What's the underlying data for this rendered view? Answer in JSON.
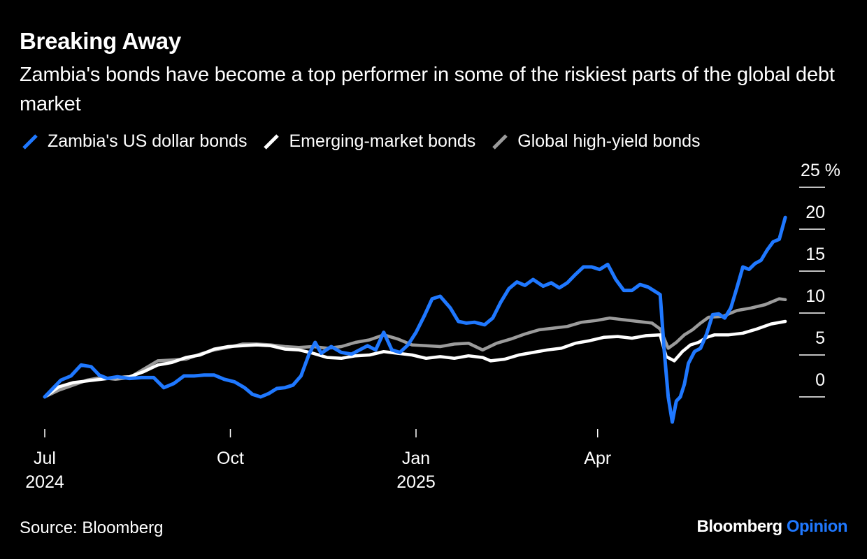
{
  "title": "Breaking Away",
  "subtitle": "Zambia's bonds have become a top performer in some of the riskiest parts of the global debt market",
  "source": "Source: Bloomberg",
  "brand": {
    "name": "Bloomberg",
    "accent": "Opinion"
  },
  "colors": {
    "zambia": "#1f78ff",
    "em": "#ffffff",
    "hy": "#9b9b9b",
    "background": "#000000"
  },
  "chart_data": {
    "type": "line",
    "title": "Breaking Away",
    "subtitle": "Zambia's bonds have become a top performer in some of the riskiest parts of the global debt market",
    "xlabel": "",
    "ylabel": "",
    "y_unit": "%",
    "ylim": [
      -5,
      25
    ],
    "yticks": [
      {
        "value": 25,
        "label": "25 %"
      },
      {
        "value": 20,
        "label": "20"
      },
      {
        "value": 15,
        "label": "15"
      },
      {
        "value": 10,
        "label": "10"
      },
      {
        "value": 5,
        "label": "5"
      },
      {
        "value": 0,
        "label": "0"
      }
    ],
    "xlim": [
      "2024-07-01",
      "2025-06-15"
    ],
    "xticks": [
      {
        "date": "2024-07-01",
        "label": "Jul",
        "sublabel": "2024"
      },
      {
        "date": "2024-10-01",
        "label": "Oct",
        "sublabel": ""
      },
      {
        "date": "2025-01-01",
        "label": "Jan",
        "sublabel": "2025"
      },
      {
        "date": "2025-04-01",
        "label": "Apr",
        "sublabel": ""
      }
    ],
    "grid": false,
    "legend": "top",
    "series": [
      {
        "name": "Zambia's US dollar bonds",
        "color": "#1f78ff",
        "points": [
          [
            "2024-07-01",
            0.0
          ],
          [
            "2024-07-05",
            1.0
          ],
          [
            "2024-07-09",
            2.0
          ],
          [
            "2024-07-14",
            2.5
          ],
          [
            "2024-07-19",
            3.8
          ],
          [
            "2024-07-24",
            3.6
          ],
          [
            "2024-07-28",
            2.6
          ],
          [
            "2024-08-01",
            2.2
          ],
          [
            "2024-08-06",
            2.4
          ],
          [
            "2024-08-12",
            2.2
          ],
          [
            "2024-08-18",
            2.3
          ],
          [
            "2024-08-24",
            2.3
          ],
          [
            "2024-08-29",
            1.1
          ],
          [
            "2024-09-03",
            1.6
          ],
          [
            "2024-09-08",
            2.5
          ],
          [
            "2024-09-13",
            2.5
          ],
          [
            "2024-09-18",
            2.6
          ],
          [
            "2024-09-23",
            2.6
          ],
          [
            "2024-09-28",
            2.1
          ],
          [
            "2024-10-03",
            1.8
          ],
          [
            "2024-10-08",
            1.1
          ],
          [
            "2024-10-12",
            0.3
          ],
          [
            "2024-10-16",
            0.0
          ],
          [
            "2024-10-20",
            0.4
          ],
          [
            "2024-10-24",
            1.0
          ],
          [
            "2024-10-28",
            1.1
          ],
          [
            "2024-11-01",
            1.4
          ],
          [
            "2024-11-05",
            2.5
          ],
          [
            "2024-11-09",
            5.1
          ],
          [
            "2024-11-12",
            6.5
          ],
          [
            "2024-11-15",
            5.2
          ],
          [
            "2024-11-20",
            6.0
          ],
          [
            "2024-11-25",
            5.3
          ],
          [
            "2024-11-30",
            5.1
          ],
          [
            "2024-12-04",
            5.6
          ],
          [
            "2024-12-08",
            6.1
          ],
          [
            "2024-12-12",
            5.6
          ],
          [
            "2024-12-16",
            7.7
          ],
          [
            "2024-12-20",
            5.6
          ],
          [
            "2024-12-24",
            5.3
          ],
          [
            "2024-12-28",
            6.2
          ],
          [
            "2025-01-01",
            7.7
          ],
          [
            "2025-01-05",
            9.6
          ],
          [
            "2025-01-09",
            11.7
          ],
          [
            "2025-01-13",
            12.0
          ],
          [
            "2025-01-18",
            10.6
          ],
          [
            "2025-01-22",
            9.0
          ],
          [
            "2025-01-26",
            8.8
          ],
          [
            "2025-01-30",
            8.9
          ],
          [
            "2025-02-04",
            8.6
          ],
          [
            "2025-02-08",
            9.4
          ],
          [
            "2025-02-12",
            11.3
          ],
          [
            "2025-02-16",
            12.9
          ],
          [
            "2025-02-20",
            13.7
          ],
          [
            "2025-02-24",
            13.3
          ],
          [
            "2025-02-28",
            14.0
          ],
          [
            "2025-03-05",
            13.2
          ],
          [
            "2025-03-09",
            13.6
          ],
          [
            "2025-03-13",
            13.0
          ],
          [
            "2025-03-17",
            13.6
          ],
          [
            "2025-03-21",
            14.6
          ],
          [
            "2025-03-25",
            15.5
          ],
          [
            "2025-03-29",
            15.5
          ],
          [
            "2025-04-02",
            15.2
          ],
          [
            "2025-04-06",
            15.8
          ],
          [
            "2025-04-10",
            14.0
          ],
          [
            "2025-04-14",
            12.7
          ],
          [
            "2025-04-18",
            12.7
          ],
          [
            "2025-04-22",
            13.4
          ],
          [
            "2025-04-26",
            13.1
          ],
          [
            "2025-04-30",
            12.5
          ],
          [
            "2025-05-02",
            12.2
          ],
          [
            "2025-05-04",
            5.5
          ],
          [
            "2025-05-06",
            0.0
          ],
          [
            "2025-05-08",
            -3.0
          ],
          [
            "2025-05-10",
            -0.5
          ],
          [
            "2025-05-12",
            0.0
          ],
          [
            "2025-05-14",
            1.5
          ],
          [
            "2025-05-16",
            4.0
          ],
          [
            "2025-05-19",
            5.4
          ],
          [
            "2025-05-22",
            5.8
          ],
          [
            "2025-05-25",
            7.5
          ],
          [
            "2025-05-28",
            9.8
          ],
          [
            "2025-05-31",
            9.9
          ],
          [
            "2025-06-03",
            9.4
          ],
          [
            "2025-06-06",
            10.6
          ],
          [
            "2025-06-09",
            13.0
          ],
          [
            "2025-06-12",
            15.5
          ],
          [
            "2025-06-15",
            15.2
          ],
          [
            "2025-06-18",
            15.9
          ],
          [
            "2025-06-21",
            16.3
          ],
          [
            "2025-06-24",
            17.5
          ],
          [
            "2025-06-27",
            18.5
          ],
          [
            "2025-06-30",
            18.8
          ],
          [
            "2025-07-03",
            21.4
          ]
        ]
      },
      {
        "name": "Emerging-market bonds",
        "color": "#ffffff",
        "points": [
          [
            "2024-07-01",
            0.0
          ],
          [
            "2024-07-08",
            1.2
          ],
          [
            "2024-07-15",
            1.7
          ],
          [
            "2024-07-22",
            1.9
          ],
          [
            "2024-07-29",
            2.1
          ],
          [
            "2024-08-05",
            2.3
          ],
          [
            "2024-08-12",
            2.4
          ],
          [
            "2024-08-19",
            3.0
          ],
          [
            "2024-08-26",
            3.8
          ],
          [
            "2024-09-02",
            4.1
          ],
          [
            "2024-09-09",
            4.7
          ],
          [
            "2024-09-16",
            5.0
          ],
          [
            "2024-09-23",
            5.7
          ],
          [
            "2024-09-30",
            6.0
          ],
          [
            "2024-10-07",
            6.1
          ],
          [
            "2024-10-14",
            6.2
          ],
          [
            "2024-10-21",
            6.1
          ],
          [
            "2024-10-28",
            5.7
          ],
          [
            "2024-11-04",
            5.6
          ],
          [
            "2024-11-11",
            5.2
          ],
          [
            "2024-11-18",
            4.7
          ],
          [
            "2024-11-25",
            4.6
          ],
          [
            "2024-12-02",
            4.9
          ],
          [
            "2024-12-09",
            5.0
          ],
          [
            "2024-12-16",
            5.4
          ],
          [
            "2024-12-23",
            5.2
          ],
          [
            "2024-12-30",
            5.0
          ],
          [
            "2025-01-06",
            4.6
          ],
          [
            "2025-01-13",
            4.8
          ],
          [
            "2025-01-20",
            4.6
          ],
          [
            "2025-01-27",
            4.9
          ],
          [
            "2025-02-03",
            4.7
          ],
          [
            "2025-02-07",
            4.3
          ],
          [
            "2025-02-14",
            4.5
          ],
          [
            "2025-02-21",
            5.0
          ],
          [
            "2025-02-28",
            5.3
          ],
          [
            "2025-03-07",
            5.6
          ],
          [
            "2025-03-14",
            5.8
          ],
          [
            "2025-03-21",
            6.4
          ],
          [
            "2025-03-28",
            6.7
          ],
          [
            "2025-04-04",
            7.1
          ],
          [
            "2025-04-11",
            7.2
          ],
          [
            "2025-04-18",
            7.0
          ],
          [
            "2025-04-25",
            7.3
          ],
          [
            "2025-05-02",
            7.4
          ],
          [
            "2025-05-05",
            4.8
          ],
          [
            "2025-05-09",
            4.3
          ],
          [
            "2025-05-13",
            5.4
          ],
          [
            "2025-05-17",
            6.2
          ],
          [
            "2025-05-21",
            6.5
          ],
          [
            "2025-05-25",
            7.1
          ],
          [
            "2025-05-29",
            7.4
          ],
          [
            "2025-06-05",
            7.4
          ],
          [
            "2025-06-12",
            7.6
          ],
          [
            "2025-06-19",
            8.1
          ],
          [
            "2025-06-26",
            8.7
          ],
          [
            "2025-07-03",
            9.0
          ]
        ]
      },
      {
        "name": "Global high-yield bonds",
        "color": "#9b9b9b",
        "points": [
          [
            "2024-07-01",
            0.0
          ],
          [
            "2024-07-08",
            0.8
          ],
          [
            "2024-07-15",
            1.4
          ],
          [
            "2024-07-22",
            2.0
          ],
          [
            "2024-07-29",
            2.3
          ],
          [
            "2024-08-05",
            2.1
          ],
          [
            "2024-08-12",
            2.3
          ],
          [
            "2024-08-19",
            3.3
          ],
          [
            "2024-08-26",
            4.3
          ],
          [
            "2024-09-02",
            4.4
          ],
          [
            "2024-09-09",
            4.5
          ],
          [
            "2024-09-16",
            5.1
          ],
          [
            "2024-09-23",
            5.6
          ],
          [
            "2024-09-30",
            5.9
          ],
          [
            "2024-10-07",
            6.3
          ],
          [
            "2024-10-14",
            6.3
          ],
          [
            "2024-10-21",
            6.2
          ],
          [
            "2024-10-28",
            6.0
          ],
          [
            "2024-11-04",
            5.9
          ],
          [
            "2024-11-11",
            6.0
          ],
          [
            "2024-11-18",
            5.8
          ],
          [
            "2024-11-25",
            6.0
          ],
          [
            "2024-12-02",
            6.5
          ],
          [
            "2024-12-09",
            6.8
          ],
          [
            "2024-12-16",
            7.4
          ],
          [
            "2024-12-23",
            6.9
          ],
          [
            "2024-12-30",
            6.2
          ],
          [
            "2025-01-06",
            6.1
          ],
          [
            "2025-01-13",
            6.0
          ],
          [
            "2025-01-20",
            6.3
          ],
          [
            "2025-01-27",
            6.4
          ],
          [
            "2025-02-03",
            5.6
          ],
          [
            "2025-02-10",
            6.4
          ],
          [
            "2025-02-17",
            6.9
          ],
          [
            "2025-02-24",
            7.5
          ],
          [
            "2025-03-03",
            8.0
          ],
          [
            "2025-03-10",
            8.2
          ],
          [
            "2025-03-17",
            8.4
          ],
          [
            "2025-03-24",
            8.9
          ],
          [
            "2025-03-31",
            9.1
          ],
          [
            "2025-04-07",
            9.4
          ],
          [
            "2025-04-14",
            9.2
          ],
          [
            "2025-04-21",
            9.0
          ],
          [
            "2025-04-28",
            8.8
          ],
          [
            "2025-05-02",
            8.1
          ],
          [
            "2025-05-06",
            5.8
          ],
          [
            "2025-05-10",
            6.5
          ],
          [
            "2025-05-14",
            7.4
          ],
          [
            "2025-05-18",
            8.0
          ],
          [
            "2025-05-22",
            8.8
          ],
          [
            "2025-05-26",
            9.5
          ],
          [
            "2025-06-02",
            9.6
          ],
          [
            "2025-06-09",
            10.3
          ],
          [
            "2025-06-16",
            10.6
          ],
          [
            "2025-06-23",
            11.0
          ],
          [
            "2025-06-30",
            11.7
          ],
          [
            "2025-07-03",
            11.6
          ]
        ]
      }
    ]
  }
}
